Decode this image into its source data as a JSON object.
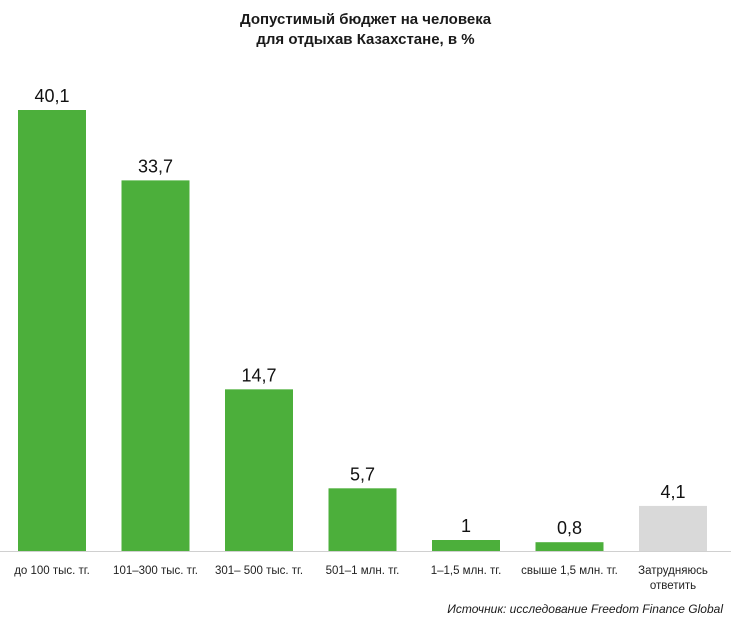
{
  "header": {
    "title_line1": "Допустимый бюджет на человека",
    "title_line2": "для отдыхав Казахстане, в %"
  },
  "footer": {
    "source": "Источник: исследование Freedom Finance Global"
  },
  "chart_data": {
    "type": "bar",
    "title": "Допустимый бюджет на человека для отдыхав Казахстане, в %",
    "categories": [
      [
        "до 100 тыс. тг."
      ],
      [
        "101–300 тыс. тг."
      ],
      [
        "301– 500 тыс. тг."
      ],
      [
        "501–1 млн. тг."
      ],
      [
        "1–1,5 млн. тг."
      ],
      [
        "свыше 1,5 млн. тг."
      ],
      [
        "Затрудняюсь",
        "ответить"
      ]
    ],
    "values": [
      40.1,
      33.7,
      14.7,
      5.7,
      1,
      0.8,
      4.1
    ],
    "value_labels": [
      "40,1",
      "33,7",
      "14,7",
      "5,7",
      "1",
      "0,8",
      "4,1"
    ],
    "colors": [
      "#4caf3b",
      "#4caf3b",
      "#4caf3b",
      "#4caf3b",
      "#4caf3b",
      "#4caf3b",
      "#d9d9d9"
    ],
    "ylim": [
      0,
      40.1
    ],
    "xlabel": "",
    "ylabel": "",
    "grid": false,
    "legend": "none"
  }
}
